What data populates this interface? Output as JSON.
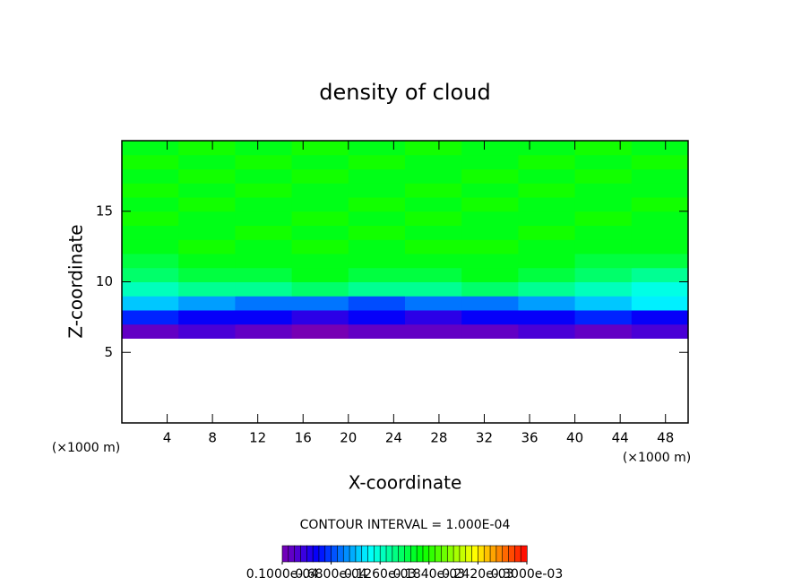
{
  "chart_data": {
    "type": "heatmap",
    "title": "density of cloud",
    "x_label": "X-coordinate",
    "y_label": "Z-coordinate",
    "x_unit": "(×1000 m)",
    "y_unit": "(×1000 m)",
    "contour_note": "CONTOUR INTERVAL = 1.000E-04",
    "xlim": [
      0,
      50
    ],
    "ylim": [
      0,
      20
    ],
    "xticks": [
      4,
      8,
      12,
      16,
      20,
      24,
      28,
      32,
      36,
      40,
      44,
      48
    ],
    "yticks": [
      5,
      10,
      15
    ],
    "x_edges": [
      0,
      5,
      10,
      15,
      20,
      25,
      30,
      35,
      40,
      45,
      50
    ],
    "z_edges": [
      6,
      7,
      8,
      9,
      10,
      11,
      12,
      13,
      14,
      15,
      16,
      17,
      18,
      19,
      20
    ],
    "values": [
      [
        2e-05,
        3e-05,
        2e-05,
        1e-05,
        2e-05,
        2e-05,
        2e-05,
        3e-05,
        2e-05,
        3e-05
      ],
      [
        6e-05,
        5e-05,
        5e-05,
        4e-05,
        5e-05,
        4e-05,
        5e-05,
        5e-05,
        6e-05,
        5e-05
      ],
      [
        0.0001,
        9e-05,
        8e-05,
        8e-05,
        7e-05,
        8e-05,
        8e-05,
        9e-05,
        0.0001,
        0.00011
      ],
      [
        0.00013,
        0.00014,
        0.00014,
        0.00015,
        0.00014,
        0.00014,
        0.00015,
        0.00014,
        0.00013,
        0.00012
      ],
      [
        0.00015,
        0.00016,
        0.00016,
        0.00017,
        0.00016,
        0.00016,
        0.00017,
        0.00016,
        0.00015,
        0.00014
      ],
      [
        0.00016,
        0.00017,
        0.00017,
        0.00017,
        0.00017,
        0.00017,
        0.00017,
        0.00017,
        0.00016,
        0.00016
      ],
      [
        0.00017,
        0.00018,
        0.00017,
        0.00018,
        0.00017,
        0.00018,
        0.00018,
        0.00017,
        0.00017,
        0.00017
      ],
      [
        0.00017,
        0.00017,
        0.00018,
        0.00017,
        0.00018,
        0.00017,
        0.00017,
        0.00018,
        0.00017,
        0.00017
      ],
      [
        0.00018,
        0.00017,
        0.00017,
        0.00018,
        0.00017,
        0.00018,
        0.00017,
        0.00017,
        0.00018,
        0.00017
      ],
      [
        0.00017,
        0.00018,
        0.00017,
        0.00017,
        0.00018,
        0.00017,
        0.00018,
        0.00017,
        0.00017,
        0.00018
      ],
      [
        0.00018,
        0.00017,
        0.00018,
        0.00017,
        0.00017,
        0.00018,
        0.00017,
        0.00018,
        0.00017,
        0.00017
      ],
      [
        0.00017,
        0.00018,
        0.00017,
        0.00018,
        0.00017,
        0.00017,
        0.00018,
        0.00017,
        0.00018,
        0.00017
      ],
      [
        0.00018,
        0.00017,
        0.00018,
        0.00017,
        0.00018,
        0.00017,
        0.00017,
        0.00018,
        0.00017,
        0.00018
      ],
      [
        0.00017,
        0.00018,
        0.00017,
        0.00018,
        0.00017,
        0.00018,
        0.00017,
        0.00017,
        0.00018,
        0.00017
      ]
    ],
    "colorlim": [
      1e-05,
      0.0003
    ],
    "colorbar_ticks": [
      {
        "value": 1e-05,
        "label": "0.1000e-04"
      },
      {
        "value": 6.8e-05,
        "label": "0.6800e-04"
      },
      {
        "value": 0.000126,
        "label": "0.1260e-03"
      },
      {
        "value": 0.000184,
        "label": "0.1840e-03"
      },
      {
        "value": 0.000242,
        "label": "0.2420e-03"
      },
      {
        "value": 0.0003,
        "label": "0.3000e-03"
      }
    ]
  }
}
